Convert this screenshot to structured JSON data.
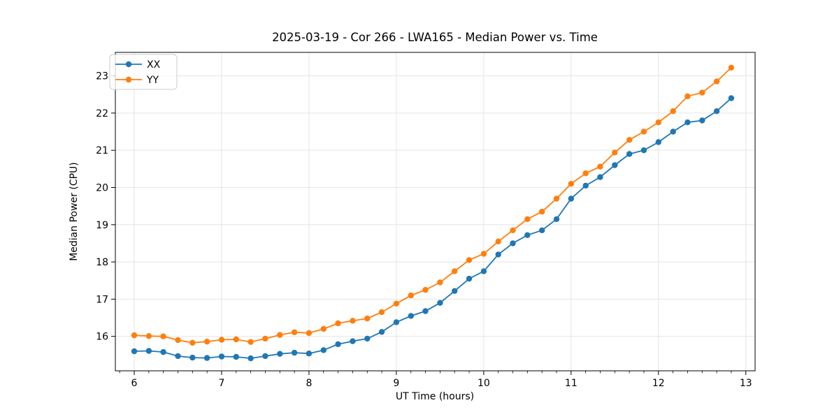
{
  "chart_data": {
    "type": "line",
    "title": "2025-03-19 - Cor 266 - LWA165 - Median Power vs. Time",
    "xlabel": "UT Time (hours)",
    "ylabel": "Median Power (CPU)",
    "x": [
      6.0,
      6.167,
      6.333,
      6.5,
      6.667,
      6.833,
      7.0,
      7.167,
      7.333,
      7.5,
      7.667,
      7.833,
      8.0,
      8.167,
      8.333,
      8.5,
      8.667,
      8.833,
      9.0,
      9.167,
      9.333,
      9.5,
      9.667,
      9.833,
      10.0,
      10.167,
      10.333,
      10.5,
      10.667,
      10.833,
      11.0,
      11.167,
      11.333,
      11.5,
      11.667,
      11.833,
      12.0,
      12.167,
      12.333,
      12.5,
      12.667,
      12.833
    ],
    "series": [
      {
        "name": "XX",
        "color": "#1f77b4",
        "values": [
          15.6,
          15.61,
          15.58,
          15.47,
          15.43,
          15.42,
          15.46,
          15.45,
          15.41,
          15.47,
          15.53,
          15.56,
          15.54,
          15.63,
          15.79,
          15.87,
          15.94,
          16.12,
          16.38,
          16.55,
          16.68,
          16.9,
          17.22,
          17.55,
          17.75,
          18.2,
          18.5,
          18.72,
          18.85,
          19.15,
          19.7,
          20.05,
          20.28,
          20.6,
          20.9,
          21.0,
          21.22,
          21.5,
          21.75,
          21.8,
          22.05,
          22.4
        ]
      },
      {
        "name": "YY",
        "color": "#ff7f0e",
        "values": [
          16.03,
          16.01,
          16.0,
          15.9,
          15.83,
          15.86,
          15.91,
          15.92,
          15.85,
          15.94,
          16.04,
          16.11,
          16.09,
          16.2,
          16.35,
          16.42,
          16.48,
          16.65,
          16.88,
          17.1,
          17.25,
          17.45,
          17.75,
          18.05,
          18.22,
          18.55,
          18.85,
          19.15,
          19.35,
          19.7,
          20.1,
          20.38,
          20.56,
          20.94,
          21.28,
          21.5,
          21.75,
          22.05,
          22.45,
          22.55,
          22.85,
          23.22
        ]
      }
    ],
    "x_ticks": [
      6,
      7,
      8,
      9,
      10,
      11,
      12,
      13
    ],
    "y_ticks": [
      16,
      17,
      18,
      19,
      20,
      21,
      22,
      23
    ],
    "x_minor_tick_step": 0.1667,
    "xlim": [
      5.784,
      13.106
    ],
    "ylim": [
      15.075,
      23.63
    ],
    "grid": true,
    "legend_position": "upper left",
    "marker": "circle",
    "colors": {
      "background": "#ffffff",
      "grid": "#e5e5e5",
      "spine": "#000000",
      "legend_edge": "#cccccc"
    }
  }
}
